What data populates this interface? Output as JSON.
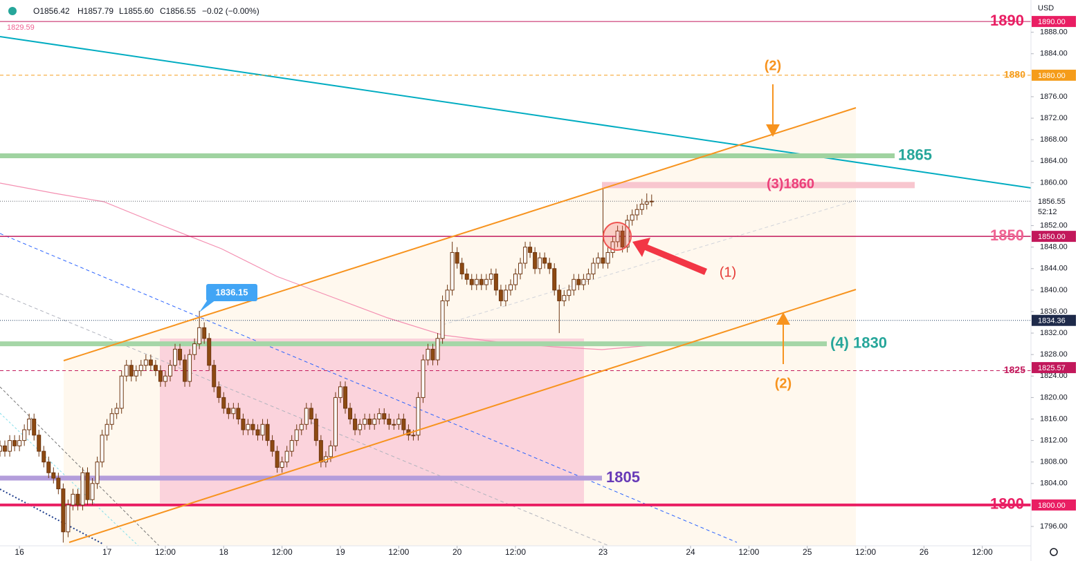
{
  "chart_data": {
    "type": "candlestick",
    "currency": "USD",
    "ohlc_legend": [
      "O1856.42",
      "H1857.79",
      "L1855.60",
      "C1856.55",
      "−0.02 (−0.00%)"
    ],
    "ma_value": 1829.59,
    "countdown": "52:12",
    "up_color": "#ffffff",
    "down_color": "#8d4a12",
    "wick_color": "#6d3510",
    "x": [
      0,
      1,
      2,
      3,
      4,
      5,
      6,
      7,
      8,
      9,
      10,
      11,
      12,
      13,
      14,
      15,
      16,
      17,
      18,
      19,
      20,
      21,
      22,
      23,
      24,
      25,
      26,
      27,
      28,
      29,
      30,
      31,
      32,
      33,
      34,
      35,
      36,
      37,
      38,
      39,
      40,
      41,
      42,
      43,
      44,
      45,
      46,
      47,
      48,
      49,
      50,
      51,
      52,
      53,
      54,
      55,
      56,
      57,
      58,
      59,
      60,
      61,
      62,
      63,
      64,
      65,
      66,
      67,
      68,
      69,
      70,
      71,
      72,
      73,
      74,
      75,
      76,
      77,
      78,
      79,
      80,
      81,
      82,
      83,
      84,
      85,
      86,
      87,
      88,
      89,
      90,
      91,
      92,
      93,
      94,
      95,
      96,
      97,
      98,
      99,
      100,
      101,
      102,
      103,
      104,
      105,
      106,
      107,
      108,
      109,
      110,
      111,
      112,
      113,
      114,
      115,
      116,
      117,
      118,
      119,
      120,
      121,
      122,
      123,
      124,
      125,
      126,
      127,
      128,
      129,
      130,
      131,
      132,
      133,
      134
    ],
    "open": [
      1810,
      1811,
      1810,
      1812,
      1811,
      1812,
      1814,
      1816,
      1813,
      1810,
      1808,
      1806,
      1805,
      1803,
      1795,
      1800,
      1802,
      1800,
      1806,
      1801,
      1804,
      1808,
      1813,
      1815,
      1817,
      1818,
      1824,
      1826,
      1824,
      1825,
      1826,
      1827,
      1826,
      1825,
      1823,
      1824,
      1826,
      1829,
      1827,
      1823,
      1828,
      1830,
      1833,
      1831,
      1826,
      1822,
      1820,
      1818,
      1817,
      1818,
      1816,
      1814,
      1815,
      1814,
      1813,
      1815,
      1812,
      1810,
      1807,
      1808,
      1810,
      1812,
      1814,
      1815,
      1818,
      1816,
      1812,
      1808,
      1809,
      1811,
      1820,
      1822,
      1818,
      1816,
      1814,
      1815,
      1816,
      1815,
      1816,
      1817,
      1816,
      1815,
      1815,
      1816,
      1814,
      1813,
      1813,
      1820,
      1827,
      1829,
      1827,
      1831,
      1838,
      1840,
      1847,
      1845,
      1843,
      1842,
      1841,
      1842,
      1841,
      1842,
      1843,
      1840,
      1838,
      1840,
      1841,
      1843,
      1845,
      1848,
      1847,
      1844,
      1846,
      1845,
      1844,
      1840,
      1838,
      1839,
      1840,
      1842,
      1841,
      1842,
      1843,
      1845,
      1846,
      1845,
      1847,
      1849,
      1851,
      1848,
      1853,
      1854,
      1855,
      1856,
      1856.42
    ],
    "high": [
      1812,
      1812,
      1813,
      1813,
      1813,
      1815,
      1817,
      1817,
      1814,
      1811,
      1809,
      1807,
      1806,
      1804,
      1801,
      1803,
      1803,
      1807,
      1807,
      1805,
      1809,
      1814,
      1816,
      1818,
      1819,
      1825,
      1827,
      1827,
      1826,
      1827,
      1828,
      1828,
      1827,
      1826,
      1825,
      1827,
      1830,
      1830,
      1828,
      1829,
      1831,
      1836.15,
      1834,
      1832,
      1827,
      1823,
      1821,
      1819,
      1819,
      1819,
      1817,
      1816,
      1816,
      1815,
      1816,
      1816,
      1813,
      1811,
      1809,
      1811,
      1813,
      1815,
      1816,
      1819,
      1819,
      1817,
      1813,
      1810,
      1812,
      1821,
      1823,
      1823,
      1819,
      1817,
      1816,
      1817,
      1817,
      1817,
      1818,
      1818,
      1817,
      1816,
      1817,
      1817,
      1815,
      1814,
      1821,
      1828,
      1830,
      1830,
      1832,
      1839,
      1841,
      1849,
      1848,
      1846,
      1844,
      1843,
      1843,
      1843,
      1843,
      1844,
      1844,
      1841,
      1841,
      1842,
      1844,
      1846,
      1849,
      1849,
      1848,
      1847,
      1847,
      1846,
      1845,
      1841,
      1840,
      1841,
      1843,
      1843,
      1843,
      1844,
      1846,
      1847,
      1859,
      1848,
      1850,
      1852,
      1852,
      1854,
      1855,
      1856,
      1857,
      1858,
      1857.79
    ],
    "low": [
      1809,
      1809,
      1809,
      1810,
      1810,
      1811,
      1813,
      1812,
      1809,
      1807,
      1805,
      1804,
      1802,
      1793,
      1794,
      1799,
      1799,
      1799,
      1800,
      1800,
      1803,
      1807,
      1812,
      1814,
      1816,
      1817,
      1823,
      1823,
      1823,
      1824,
      1825,
      1825,
      1824,
      1822,
      1822,
      1823,
      1825,
      1826,
      1822,
      1822,
      1827,
      1829,
      1830,
      1825,
      1821,
      1819,
      1817,
      1816,
      1816,
      1815,
      1813,
      1813,
      1813,
      1812,
      1812,
      1811,
      1809,
      1806,
      1806,
      1807,
      1809,
      1811,
      1813,
      1814,
      1815,
      1811,
      1807,
      1807,
      1808,
      1810,
      1819,
      1817,
      1815,
      1813,
      1813,
      1814,
      1814,
      1814,
      1815,
      1815,
      1814,
      1814,
      1814,
      1813,
      1812,
      1812,
      1812,
      1819,
      1826,
      1826,
      1826,
      1830,
      1837,
      1839,
      1844,
      1842,
      1841,
      1840,
      1840,
      1840,
      1840,
      1841,
      1839,
      1837,
      1837,
      1839,
      1840,
      1842,
      1844,
      1846,
      1843,
      1843,
      1844,
      1843,
      1839,
      1832,
      1837,
      1838,
      1839,
      1840,
      1840,
      1841,
      1842,
      1844,
      1844,
      1844,
      1846,
      1848,
      1847,
      1847,
      1852,
      1853,
      1854,
      1855,
      1855.6
    ],
    "close": [
      1811,
      1810,
      1812,
      1811,
      1812,
      1814,
      1816,
      1813,
      1810,
      1808,
      1806,
      1805,
      1803,
      1795,
      1800,
      1802,
      1800,
      1806,
      1801,
      1804,
      1808,
      1813,
      1815,
      1817,
      1818,
      1824,
      1826,
      1824,
      1825,
      1826,
      1827,
      1826,
      1825,
      1823,
      1824,
      1826,
      1829,
      1827,
      1823,
      1828,
      1830,
      1833,
      1831,
      1826,
      1822,
      1820,
      1818,
      1817,
      1818,
      1816,
      1814,
      1815,
      1814,
      1813,
      1815,
      1812,
      1810,
      1807,
      1808,
      1810,
      1812,
      1814,
      1815,
      1818,
      1816,
      1812,
      1808,
      1809,
      1811,
      1820,
      1822,
      1818,
      1816,
      1814,
      1815,
      1816,
      1815,
      1816,
      1817,
      1816,
      1815,
      1815,
      1816,
      1814,
      1813,
      1813,
      1820,
      1827,
      1829,
      1827,
      1831,
      1838,
      1840,
      1847,
      1845,
      1843,
      1842,
      1841,
      1842,
      1841,
      1842,
      1843,
      1840,
      1838,
      1840,
      1841,
      1843,
      1845,
      1848,
      1847,
      1844,
      1846,
      1845,
      1844,
      1840,
      1838,
      1839,
      1840,
      1842,
      1841,
      1842,
      1843,
      1845,
      1846,
      1845,
      1847,
      1849,
      1851,
      1848,
      1853,
      1854,
      1855,
      1856,
      1856.42,
      1856.55
    ],
    "xlim": [
      0,
      212
    ],
    "xticks": [
      {
        "value": 4,
        "label": "16"
      },
      {
        "value": 22,
        "label": "17"
      },
      {
        "value": 34,
        "label": "12:00"
      },
      {
        "value": 46,
        "label": "18"
      },
      {
        "value": 58,
        "label": "12:00"
      },
      {
        "value": 70,
        "label": "19"
      },
      {
        "value": 82,
        "label": "12:00"
      },
      {
        "value": 94,
        "label": "20"
      },
      {
        "value": 106,
        "label": "12:00"
      },
      {
        "value": 124,
        "label": "23"
      },
      {
        "value": 142,
        "label": "24"
      },
      {
        "value": 154,
        "label": "12:00"
      },
      {
        "value": 166,
        "label": "25"
      },
      {
        "value": 178,
        "label": "12:00"
      },
      {
        "value": 190,
        "label": "26"
      },
      {
        "value": 202,
        "label": "12:00"
      }
    ],
    "ylim": [
      1792.4,
      1894
    ],
    "yticks": [
      {
        "value": 1796,
        "label": "1796.00"
      },
      {
        "value": 1804,
        "label": "1804.00"
      },
      {
        "value": 1808,
        "label": "1808.00"
      },
      {
        "value": 1812,
        "label": "1812.00"
      },
      {
        "value": 1816,
        "label": "1816.00"
      },
      {
        "value": 1820,
        "label": "1820.00"
      },
      {
        "value": 1824,
        "label": "1824.00"
      },
      {
        "value": 1828,
        "label": "1828.00"
      },
      {
        "value": 1832,
        "label": "1832.00"
      },
      {
        "value": 1836,
        "label": "1836.00"
      },
      {
        "value": 1840,
        "label": "1840.00"
      },
      {
        "value": 1844,
        "label": "1844.00"
      },
      {
        "value": 1848,
        "label": "1848.00"
      },
      {
        "value": 1852,
        "label": "1852.00"
      },
      {
        "value": 1860,
        "label": "1860.00"
      },
      {
        "value": 1864,
        "label": "1864.00"
      },
      {
        "value": 1868,
        "label": "1868.00"
      },
      {
        "value": 1872,
        "label": "1872.00"
      },
      {
        "value": 1876,
        "label": "1876.00"
      },
      {
        "value": 1884,
        "label": "1884.00"
      },
      {
        "value": 1888,
        "label": "1888.00"
      }
    ],
    "grid": false,
    "levels": [
      {
        "value": 1890,
        "style": "solid",
        "color": "#c2185b",
        "text_color": "#e91e63"
      },
      {
        "value": 1880,
        "style": "dashed",
        "color": "#f59c1a",
        "text_color": "#f59c1a"
      },
      {
        "value": 1865,
        "style": "thick",
        "color": "#9fd3a0",
        "text_color": "#26a69a"
      },
      {
        "value": 1860,
        "label": "(3)1860",
        "style": "band",
        "color": "#f8c6cf",
        "text_color": "#ec407a"
      },
      {
        "value": 1856.55,
        "style": "dotted",
        "color": "#5d606b"
      },
      {
        "value": 1850,
        "style": "solid",
        "color": "#c2185b",
        "text_color": "#f06292"
      },
      {
        "value": 1834.36,
        "style": "dotted",
        "color": "#1e3a5f"
      },
      {
        "value": 1830,
        "label": "(4) 1830",
        "style": "thick",
        "color": "#a5d6a7",
        "text_color": "#26a69a"
      },
      {
        "value": 1825,
        "style": "dashed",
        "color": "#c2185b",
        "text_color": "#c2185b"
      },
      {
        "value": 1805,
        "style": "thick",
        "color": "#b39ddb",
        "text_color": "#673ab7"
      },
      {
        "value": 1800,
        "style": "thick",
        "color": "#e91e63",
        "text_color": "#e91e63"
      }
    ],
    "price_tags": [
      {
        "value": 1890,
        "label": "1890.00",
        "color": "#e91e63"
      },
      {
        "value": 1880,
        "label": "1880.00",
        "color": "#f59c1a"
      },
      {
        "value": 1856.55,
        "label": "1856.55",
        "color": "#ffffff"
      },
      {
        "value": 1850,
        "label": "1850.00",
        "color": "#c2185b"
      },
      {
        "value": 1834.36,
        "label": "1834.36",
        "color": "#1e2a4a"
      },
      {
        "value": 1825.57,
        "label": "1825.57",
        "color": "#c2185b"
      },
      {
        "value": 1800,
        "label": "1800.00",
        "color": "#e91e63"
      }
    ],
    "annotations": [
      "(1)",
      "(2)",
      "(2)"
    ]
  }
}
